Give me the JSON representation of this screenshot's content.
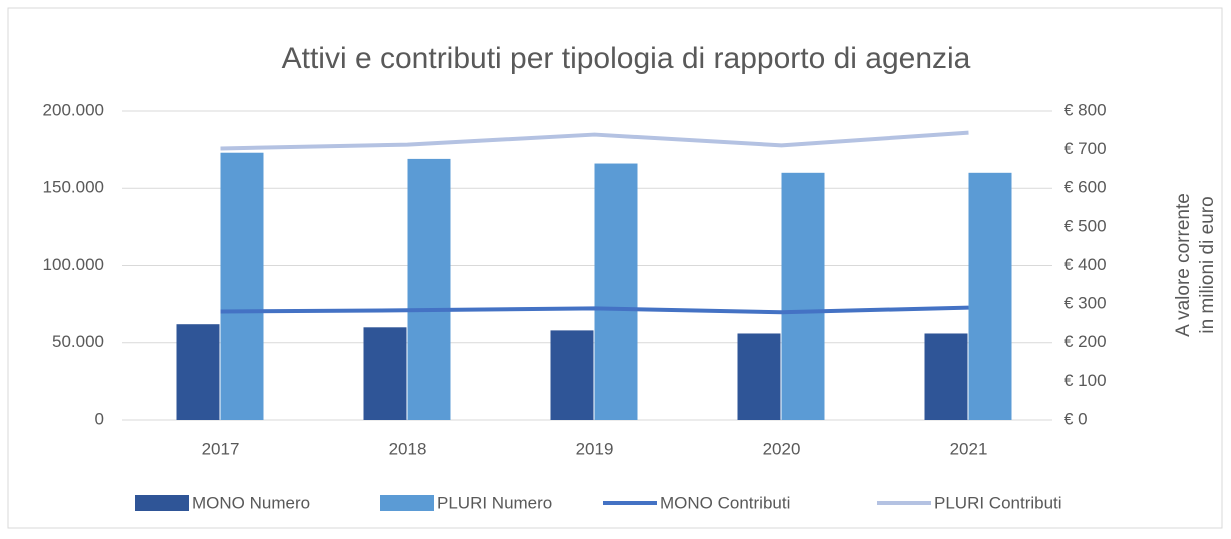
{
  "chart_data": {
    "type": "bar-line",
    "title": "Attivi e contributi per tipologia di rapporto di agenzia",
    "categories": [
      "2017",
      "2018",
      "2019",
      "2020",
      "2021"
    ],
    "series": [
      {
        "name": "MONO Numero",
        "color": "#2f5597",
        "type": "bar",
        "values": [
          62000,
          60000,
          58000,
          56000,
          56000
        ]
      },
      {
        "name": "PLURI Numero",
        "color": "#5b9bd5",
        "type": "bar",
        "values": [
          173000,
          169000,
          166000,
          160000,
          160000
        ]
      },
      {
        "name": "MONO Contributi",
        "color": "#4472c4",
        "type": "line",
        "axis": "y2",
        "values": [
          281,
          284,
          289,
          279,
          291
        ]
      },
      {
        "name": "PLURI Contributi",
        "color": "#b4c2e2",
        "type": "line",
        "axis": "y2",
        "values": [
          703,
          713,
          739,
          711,
          744
        ]
      }
    ],
    "ylim": [
      0,
      200000
    ],
    "yticks": [
      0,
      {
        "value": 50000,
        "label": "50.000"
      },
      {
        "value": 100000,
        "label": "100.000"
      },
      {
        "value": 150000,
        "label": "150.000"
      },
      {
        "value": 200000,
        "label": "200.000"
      }
    ],
    "y2lim": [
      0,
      800
    ],
    "y2ticks": [
      {
        "value": 0,
        "label": "€ 0"
      },
      {
        "value": 100,
        "label": "€ 100"
      },
      {
        "value": 200,
        "label": "€ 200"
      },
      {
        "value": 300,
        "label": "€ 300"
      },
      {
        "value": 400,
        "label": "€ 400"
      },
      {
        "value": 500,
        "label": "€ 500"
      },
      {
        "value": 600,
        "label": "€ 600"
      },
      {
        "value": 700,
        "label": "€ 700"
      },
      {
        "value": 800,
        "label": "€ 800"
      }
    ],
    "y2label": [
      "A valore corrente",
      "in milioni di euro"
    ],
    "grid": true,
    "legend": "bottom"
  }
}
